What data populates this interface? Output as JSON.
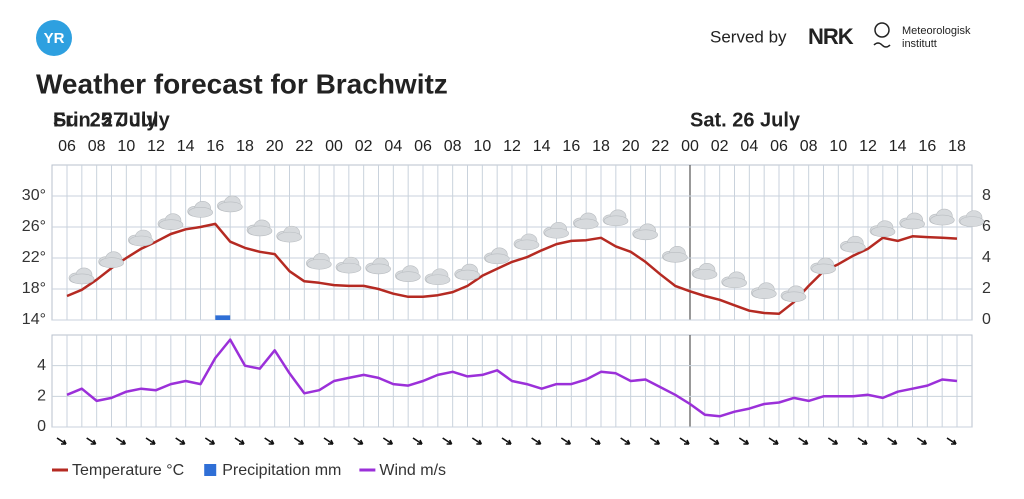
{
  "header": {
    "logo": "YR",
    "served_by": "Served by",
    "nrk": "NRK",
    "org": [
      "Meteorologisk",
      "institutt"
    ],
    "title": "Weather forecast for Brachwitz"
  },
  "chart_data": [
    {
      "type": "line",
      "days": [
        "Fri. 25 July",
        "Sat. 26 July",
        "Sun. 27 July"
      ],
      "categories": [
        "06",
        null,
        "08",
        null,
        "10",
        null,
        "12",
        null,
        "14",
        null,
        "16",
        null,
        "18",
        null,
        "20",
        null,
        "22",
        null,
        "00",
        null,
        "02",
        null,
        "04",
        null,
        "06",
        null,
        "08",
        null,
        "10",
        null,
        "12",
        null,
        "14",
        null,
        "16",
        null,
        "18",
        null,
        "20",
        null,
        "22",
        null,
        "00",
        null,
        "02",
        null,
        "04",
        null,
        "06",
        null,
        "08",
        null,
        "10",
        null,
        "12",
        null,
        "14",
        null,
        "16",
        null,
        "18"
      ],
      "series": [
        {
          "name": "Temperature °C",
          "type": "line",
          "color": "#b52a22",
          "values": [
            17.1,
            17.9,
            19.2,
            20.7,
            22.0,
            23.2,
            24.1,
            25.1,
            25.7,
            26.0,
            26.4,
            24.1,
            23.3,
            22.8,
            22.5,
            20.3,
            19.0,
            18.8,
            18.5,
            18.4,
            18.4,
            18.0,
            17.4,
            17.0,
            17.0,
            17.2,
            17.6,
            18.4,
            19.7,
            20.6,
            21.5,
            22.1,
            23.0,
            23.8,
            24.2,
            24.3,
            24.6,
            23.5,
            22.8,
            21.5,
            19.9,
            18.4,
            17.7,
            17.1,
            16.6,
            15.9,
            15.2,
            14.9,
            14.8,
            16.3,
            18.4,
            20.3,
            21.2,
            22.3,
            23.2,
            24.6,
            24.2,
            24.8,
            24.7,
            24.6,
            24.5
          ]
        },
        {
          "name": "Precipitation mm",
          "type": "bar",
          "axis": "y2",
          "color": "#2f6fd6",
          "values": [
            0,
            0,
            0,
            0,
            0,
            0,
            0,
            0,
            0,
            0,
            0.3,
            0,
            0,
            0,
            0,
            0,
            0,
            0,
            0,
            0,
            0,
            0,
            0,
            0,
            0,
            0,
            0,
            0,
            0,
            0,
            0,
            0,
            0,
            0,
            0,
            0,
            0,
            0,
            0,
            0,
            0,
            0,
            0,
            0,
            0,
            0,
            0,
            0,
            0,
            0,
            0,
            0,
            0,
            0,
            0,
            0,
            0,
            0,
            0,
            0,
            0
          ]
        }
      ],
      "ylim": [
        14,
        34
      ],
      "yticks": [
        {
          "value": 14,
          "label": "14°"
        },
        {
          "value": 18,
          "label": "18°"
        },
        {
          "value": 22,
          "label": "22°"
        },
        {
          "value": 26,
          "label": "26°"
        },
        {
          "value": 30,
          "label": "30°"
        }
      ],
      "y2lim": [
        0,
        10
      ],
      "y2ticks": [
        0,
        2,
        4,
        6,
        8
      ],
      "grid": true
    },
    {
      "type": "line",
      "series": [
        {
          "name": "Wind m/s",
          "type": "line",
          "color": "#9b30d9",
          "values": [
            2.1,
            2.5,
            1.7,
            1.9,
            2.3,
            2.5,
            2.4,
            2.8,
            3.0,
            2.8,
            4.5,
            5.7,
            4.0,
            3.8,
            5.0,
            3.5,
            2.2,
            2.4,
            3.0,
            3.2,
            3.4,
            3.2,
            2.8,
            2.7,
            3.0,
            3.4,
            3.6,
            3.3,
            3.4,
            3.7,
            3.0,
            2.8,
            2.5,
            2.8,
            2.8,
            3.1,
            3.6,
            3.5,
            3.0,
            3.1,
            2.6,
            2.1,
            1.5,
            0.8,
            0.7,
            1.0,
            1.2,
            1.5,
            1.6,
            1.9,
            1.7,
            2.0,
            2.0,
            2.0,
            2.1,
            1.9,
            2.3,
            2.5,
            2.7,
            3.1,
            3.0
          ]
        }
      ],
      "ylim": [
        0,
        6
      ],
      "yticks": [
        0,
        2,
        4
      ],
      "grid": true
    }
  ]
}
